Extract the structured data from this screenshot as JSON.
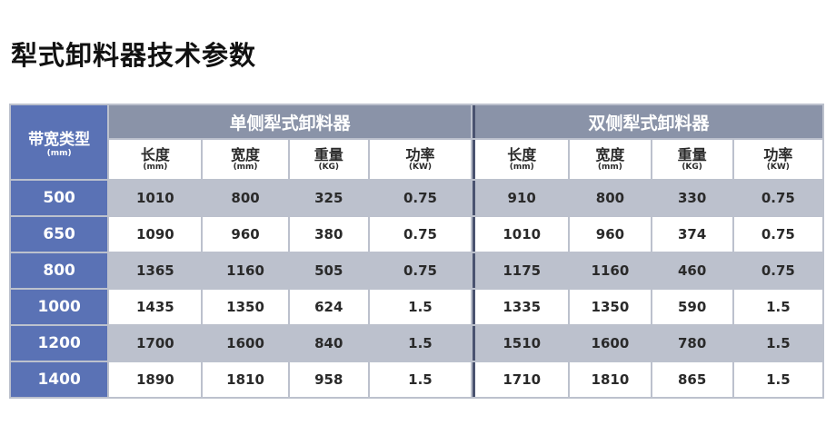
{
  "title": "犁式卸料器技术参数",
  "type_header": {
    "label": "带宽类型",
    "unit": "(mm)"
  },
  "groups": [
    "单侧犁式卸料器",
    "双侧犁式卸料器"
  ],
  "columns": [
    {
      "label": "长度",
      "unit": "(mm)"
    },
    {
      "label": "宽度",
      "unit": "(mm)"
    },
    {
      "label": "重量",
      "unit": "(KG)"
    },
    {
      "label": "功率",
      "unit": "(KW)"
    }
  ],
  "rows": [
    {
      "type": "500",
      "single": [
        "1010",
        "800",
        "325",
        "0.75"
      ],
      "double": [
        "910",
        "800",
        "330",
        "0.75"
      ]
    },
    {
      "type": "650",
      "single": [
        "1090",
        "960",
        "380",
        "0.75"
      ],
      "double": [
        "1010",
        "960",
        "374",
        "0.75"
      ]
    },
    {
      "type": "800",
      "single": [
        "1365",
        "1160",
        "505",
        "0.75"
      ],
      "double": [
        "1175",
        "1160",
        "460",
        "0.75"
      ]
    },
    {
      "type": "1000",
      "single": [
        "1435",
        "1350",
        "624",
        "1.5"
      ],
      "double": [
        "1335",
        "1350",
        "590",
        "1.5"
      ]
    },
    {
      "type": "1200",
      "single": [
        "1700",
        "1600",
        "840",
        "1.5"
      ],
      "double": [
        "1510",
        "1600",
        "780",
        "1.5"
      ]
    },
    {
      "type": "1400",
      "single": [
        "1890",
        "1810",
        "958",
        "1.5"
      ],
      "double": [
        "1710",
        "1810",
        "865",
        "1.5"
      ]
    }
  ],
  "colors": {
    "type_column": "#5a72b5",
    "group_header": "#8a93a8",
    "stripe": "#bcc1cd",
    "separator": "#4a5370"
  }
}
